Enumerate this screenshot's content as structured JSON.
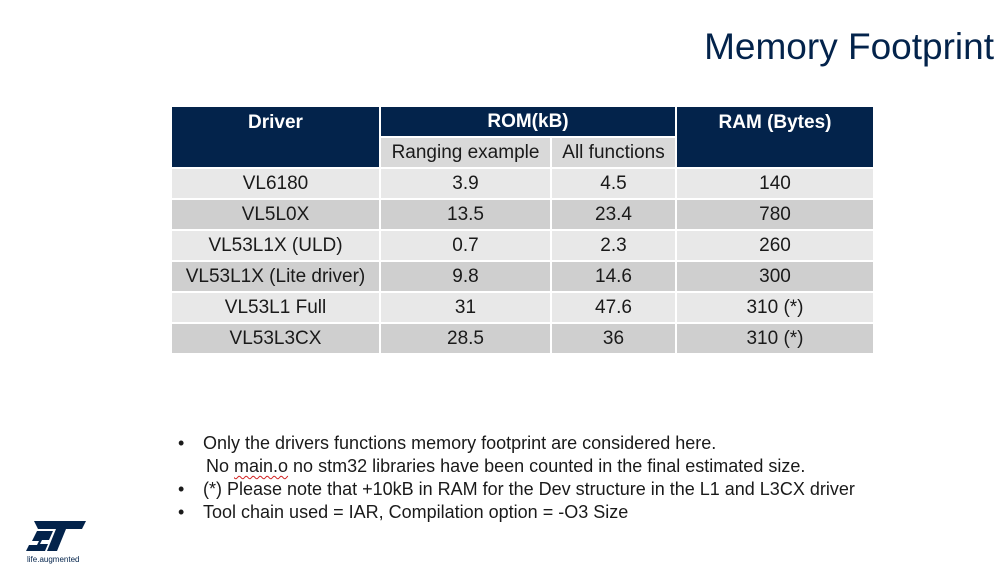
{
  "title": "Memory Footprint",
  "table": {
    "headers": {
      "driver": "Driver",
      "rom": "ROM(kB)",
      "ram": "RAM (Bytes)",
      "rom_sub": [
        "Ranging example",
        "All functions"
      ]
    },
    "rows": [
      {
        "driver": "VL6180",
        "ranging": "3.9",
        "all": "4.5",
        "ram": "140"
      },
      {
        "driver": "VL5L0X",
        "ranging": "13.5",
        "all": "23.4",
        "ram": "780"
      },
      {
        "driver": "VL53L1X (ULD)",
        "ranging": "0.7",
        "all": "2.3",
        "ram": "260"
      },
      {
        "driver": "VL53L1X (Lite driver)",
        "ranging": "9.8",
        "all": "14.6",
        "ram": "300"
      },
      {
        "driver": "VL53L1 Full",
        "ranging": "31",
        "all": "47.6",
        "ram": "310 (*)"
      },
      {
        "driver": "VL53L3CX",
        "ranging": "28.5",
        "all": "36",
        "ram": "310 (*)"
      }
    ]
  },
  "notes": {
    "bullet": "•",
    "item1": "Only the drivers functions memory footprint are considered here.",
    "item1_cont_pre": "No ",
    "item1_cont_word": "main.o",
    "item1_cont_post": " no stm32 libraries have been counted in the final estimated size.",
    "item2": "(*) Please note that +10kB in RAM for the Dev structure in the L1 and L3CX driver",
    "item3": "Tool chain used = IAR, Compilation option = -O3 Size"
  },
  "logo": {
    "tagline": "life.augmented",
    "color": "#03234b"
  }
}
